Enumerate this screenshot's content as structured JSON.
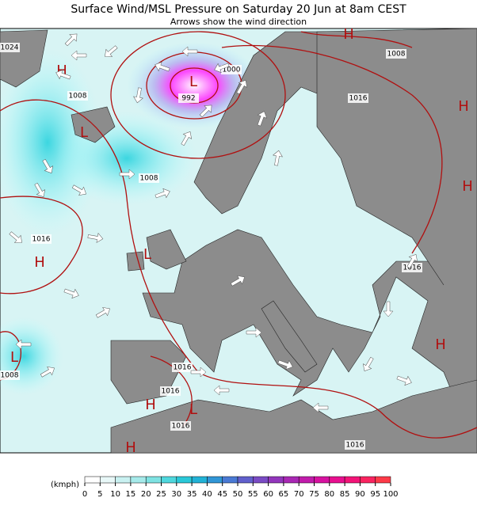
{
  "header": {
    "title": "Surface Wind/MSL Pressure on Saturday 20 Jun at 8am CEST",
    "subtitle": "Arrows show the wind direction"
  },
  "isobar_labels": [
    "1024",
    "1008",
    "1008",
    "992",
    "1000",
    "1016",
    "1008",
    "1016",
    "1016",
    "1016",
    "1016",
    "1016",
    "1016",
    "1008"
  ],
  "pressure_centers": [
    "H",
    "L",
    "L",
    "H",
    "H",
    "L",
    "L",
    "H",
    "H",
    "H",
    "L",
    "H",
    "H"
  ],
  "legend": {
    "unit": "(kmph)",
    "ticks": [
      0,
      5,
      10,
      15,
      20,
      25,
      30,
      35,
      40,
      45,
      50,
      55,
      60,
      65,
      70,
      75,
      80,
      85,
      90,
      95,
      100
    ],
    "colors": [
      "#ffffff",
      "#e8f8f8",
      "#c9f1f1",
      "#a6eaea",
      "#7ee2e2",
      "#4fd7dd",
      "#2ac8d8",
      "#22b2d6",
      "#3196d6",
      "#4a7ad4",
      "#6160cc",
      "#7a4bc4",
      "#9236bc",
      "#a928b4",
      "#c11cab",
      "#d712a0",
      "#e80f8f",
      "#f31478",
      "#fa2460",
      "#fd3a48"
    ]
  }
}
